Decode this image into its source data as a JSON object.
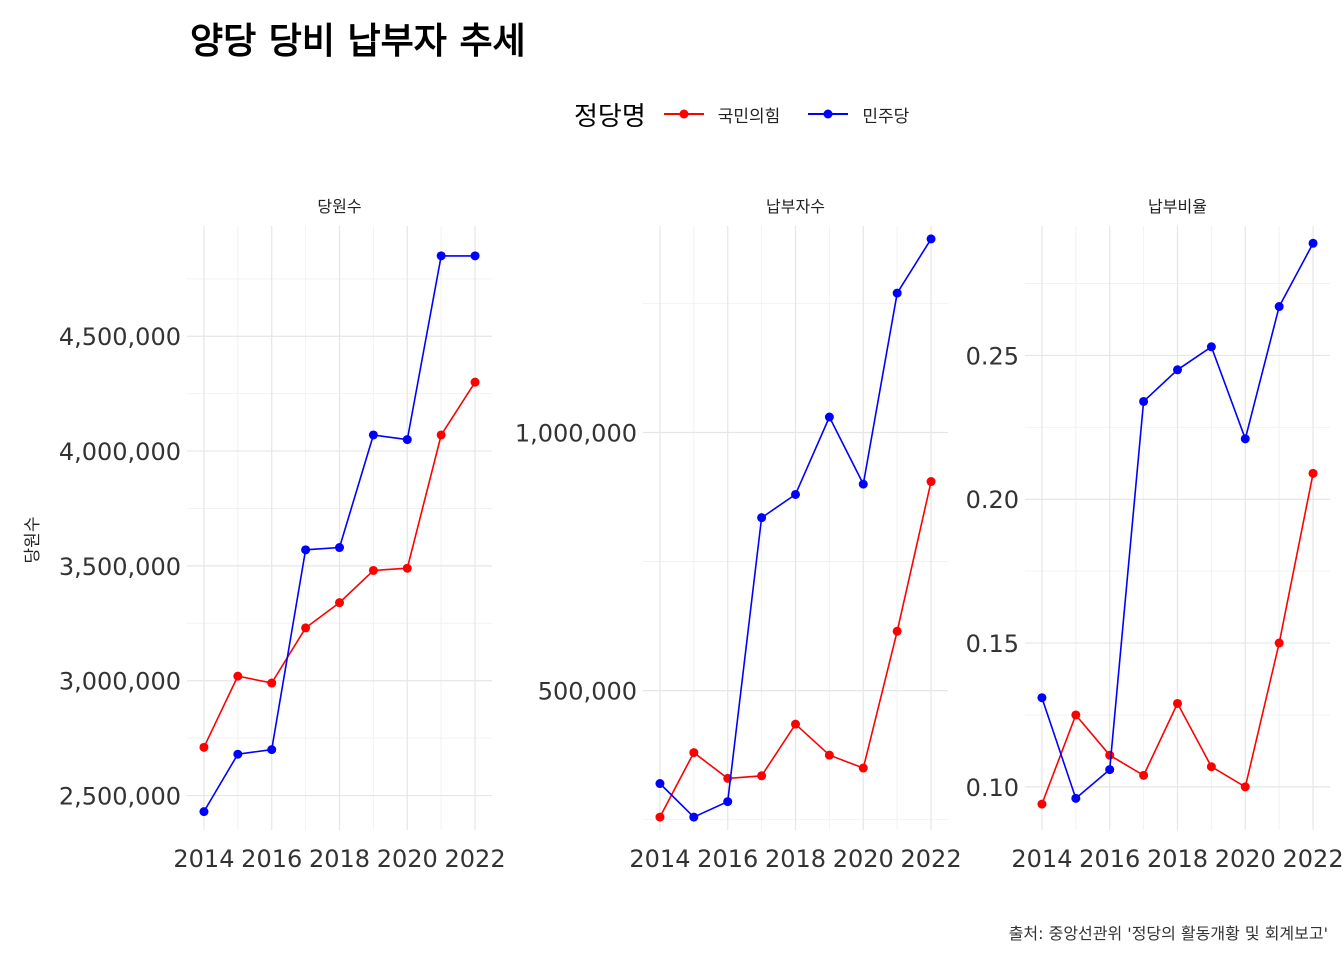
{
  "title": "양당 당비 납부자 추세",
  "caption": "출처: 중앙선관위 '정당의 활동개황 및 회계보고'",
  "legend": {
    "title": "정당명",
    "entries": [
      {
        "label": "국민의힘",
        "color": "#ff0000"
      },
      {
        "label": "민주당",
        "color": "#0000ff"
      }
    ]
  },
  "y_axis_label": "당원수",
  "chart_data": [
    {
      "type": "line",
      "title": "당원수",
      "x": [
        2014,
        2015,
        2016,
        2017,
        2018,
        2019,
        2020,
        2021,
        2022
      ],
      "x_ticks": [
        2014,
        2016,
        2018,
        2020,
        2022
      ],
      "ylim": [
        2350000,
        4980000
      ],
      "y_ticks": [
        2500000,
        3000000,
        3500000,
        4000000,
        4500000
      ],
      "y_tick_labels": [
        "2,500,000",
        "3,000,000",
        "3,500,000",
        "4,000,000",
        "4,500,000"
      ],
      "series": [
        {
          "name": "국민의힘",
          "color": "#ff0000",
          "values": [
            2710000,
            3020000,
            2990000,
            3230000,
            3340000,
            3480000,
            3490000,
            4070000,
            4300000
          ]
        },
        {
          "name": "민주당",
          "color": "#0000ff",
          "values": [
            2430000,
            2680000,
            2700000,
            3570000,
            3580000,
            4070000,
            4050000,
            4850000,
            4850000
          ]
        }
      ]
    },
    {
      "type": "line",
      "title": "납부자수",
      "x": [
        2014,
        2015,
        2016,
        2017,
        2018,
        2019,
        2020,
        2021,
        2022
      ],
      "x_ticks": [
        2014,
        2016,
        2018,
        2020,
        2022
      ],
      "ylim": [
        230000,
        1400000
      ],
      "y_ticks": [
        500000,
        1000000
      ],
      "y_tick_labels": [
        "500,000",
        "1,000,000"
      ],
      "series": [
        {
          "name": "국민의힘",
          "color": "#ff0000",
          "values": [
            255000,
            380000,
            330000,
            335000,
            435000,
            375000,
            350000,
            615000,
            905000
          ]
        },
        {
          "name": "민주당",
          "color": "#0000ff",
          "values": [
            320000,
            255000,
            285000,
            835000,
            880000,
            1030000,
            900000,
            1270000,
            1375000
          ]
        }
      ]
    },
    {
      "type": "line",
      "title": "납부비율",
      "x": [
        2014,
        2015,
        2016,
        2017,
        2018,
        2019,
        2020,
        2021,
        2022
      ],
      "x_ticks": [
        2014,
        2016,
        2018,
        2020,
        2022
      ],
      "ylim": [
        0.085,
        0.295
      ],
      "y_ticks": [
        0.1,
        0.15,
        0.2,
        0.25
      ],
      "y_tick_labels": [
        "0.10",
        "0.15",
        "0.20",
        "0.25"
      ],
      "series": [
        {
          "name": "국민의힘",
          "color": "#ff0000",
          "values": [
            0.094,
            0.125,
            0.111,
            0.104,
            0.129,
            0.107,
            0.1,
            0.15,
            0.209
          ]
        },
        {
          "name": "민주당",
          "color": "#0000ff",
          "values": [
            0.131,
            0.096,
            0.106,
            0.234,
            0.245,
            0.253,
            0.221,
            0.267,
            0.289
          ]
        }
      ]
    }
  ]
}
